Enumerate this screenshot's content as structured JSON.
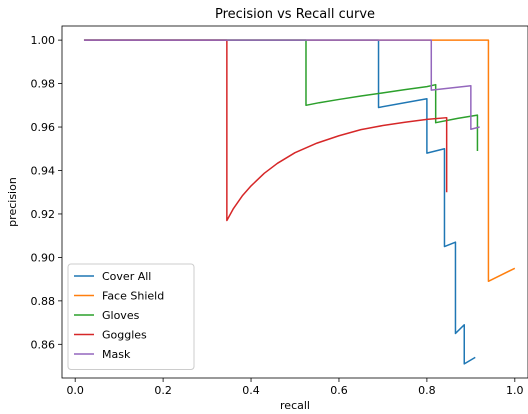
{
  "chart_data": {
    "type": "line",
    "title": "Precision vs Recall curve",
    "xlabel": "recall",
    "ylabel": "precision",
    "xlim": [
      -0.03,
      1.03
    ],
    "ylim": [
      0.8445,
      1.0065
    ],
    "xticks": [
      "0.0",
      "0.2",
      "0.4",
      "0.6",
      "0.8",
      "1.0"
    ],
    "yticks": [
      "0.86",
      "0.88",
      "0.90",
      "0.92",
      "0.94",
      "0.96",
      "0.98",
      "1.00"
    ],
    "legend_position": "lower-left",
    "grid": false,
    "series": [
      {
        "name": "Cover All",
        "color": "#1f77b4",
        "points": [
          [
            0.02,
            1.0
          ],
          [
            0.69,
            1.0
          ],
          [
            0.69,
            0.969
          ],
          [
            0.8,
            0.973
          ],
          [
            0.8,
            0.948
          ],
          [
            0.84,
            0.95
          ],
          [
            0.84,
            0.905
          ],
          [
            0.865,
            0.907
          ],
          [
            0.865,
            0.865
          ],
          [
            0.885,
            0.869
          ],
          [
            0.885,
            0.851
          ],
          [
            0.91,
            0.854
          ]
        ]
      },
      {
        "name": "Face Shield",
        "color": "#ff7f0e",
        "points": [
          [
            0.02,
            1.0
          ],
          [
            0.94,
            1.0
          ],
          [
            0.94,
            0.889
          ],
          [
            1.0,
            0.895
          ]
        ]
      },
      {
        "name": "Gloves",
        "color": "#2ca02c",
        "points": [
          [
            0.02,
            1.0
          ],
          [
            0.525,
            1.0
          ],
          [
            0.525,
            0.97
          ],
          [
            0.555,
            0.9712
          ],
          [
            0.6,
            0.9727
          ],
          [
            0.65,
            0.9743
          ],
          [
            0.7,
            0.9757
          ],
          [
            0.75,
            0.9772
          ],
          [
            0.8,
            0.9786
          ],
          [
            0.82,
            0.9795
          ],
          [
            0.82,
            0.962
          ],
          [
            0.87,
            0.964
          ],
          [
            0.915,
            0.9655
          ],
          [
            0.915,
            0.949
          ]
        ]
      },
      {
        "name": "Goggles",
        "color": "#d62728",
        "points": [
          [
            0.02,
            1.0
          ],
          [
            0.345,
            1.0
          ],
          [
            0.345,
            0.917
          ],
          [
            0.36,
            0.9225
          ],
          [
            0.38,
            0.9283
          ],
          [
            0.4,
            0.9329
          ],
          [
            0.43,
            0.9387
          ],
          [
            0.46,
            0.9433
          ],
          [
            0.5,
            0.9482
          ],
          [
            0.55,
            0.9526
          ],
          [
            0.6,
            0.956
          ],
          [
            0.65,
            0.9588
          ],
          [
            0.7,
            0.9607
          ],
          [
            0.75,
            0.9622
          ],
          [
            0.8,
            0.9635
          ],
          [
            0.845,
            0.9643
          ],
          [
            0.845,
            0.93
          ]
        ]
      },
      {
        "name": "Mask",
        "color": "#9467bd",
        "points": [
          [
            0.02,
            1.0
          ],
          [
            0.81,
            1.0
          ],
          [
            0.81,
            0.977
          ],
          [
            0.9,
            0.979
          ],
          [
            0.9,
            0.959
          ],
          [
            0.92,
            0.96
          ]
        ]
      }
    ]
  }
}
